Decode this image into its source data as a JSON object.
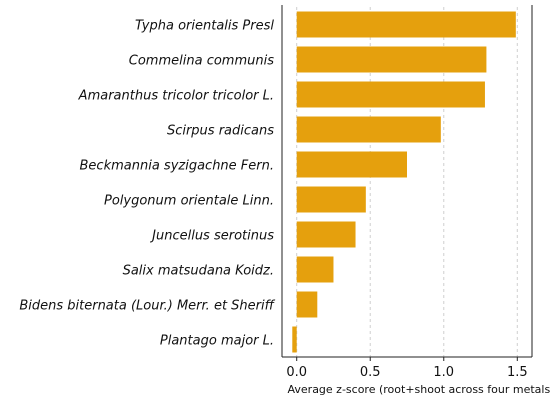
{
  "chart_data": {
    "type": "bar",
    "orientation": "horizontal",
    "title": "",
    "xlabel": "Average z-score (root+shoot across four metals)",
    "ylabel": "",
    "xlim": [
      -0.1,
      1.6
    ],
    "xticks": [
      0.0,
      0.5,
      1.0,
      1.5
    ],
    "xtick_labels": [
      "0.0",
      "0.5",
      "1.0",
      "1.5"
    ],
    "grid": "vertical dashed",
    "bar_color": "#E5A00D",
    "categories": [
      "Typha orientalis Presl",
      "Commelina communis",
      "Amaranthus tricolor tricolor L.",
      "Scirpus radicans",
      "Beckmannia syzigachne Fern.",
      "Polygonum orientale Linn.",
      "Juncellus serotinus",
      "Salix matsudana Koidz.",
      "Bidens biternata (Lour.) Merr. et Sheriff",
      "Plantago major L."
    ],
    "values": [
      1.49,
      1.29,
      1.28,
      0.98,
      0.75,
      0.47,
      0.4,
      0.25,
      0.14,
      -0.03
    ]
  }
}
